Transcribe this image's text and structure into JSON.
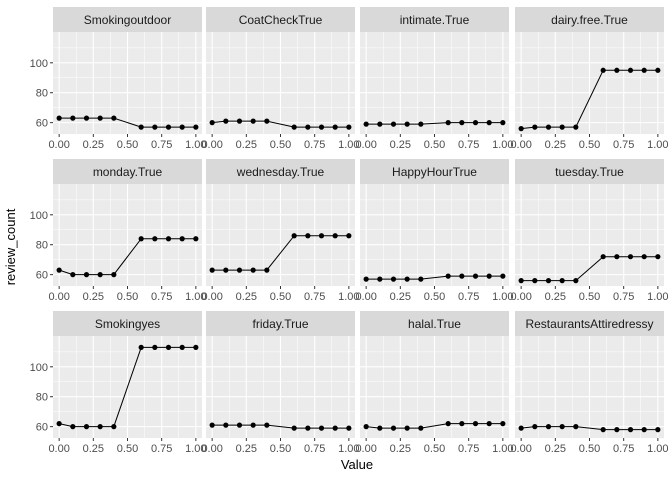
{
  "chart_data": {
    "type": "line",
    "xlabel": "Value",
    "ylabel": "review_count",
    "xlim": [
      0,
      1
    ],
    "ylim": [
      52.4,
      120.6
    ],
    "x_ticks": [
      0,
      0.25,
      0.5,
      0.75,
      1
    ],
    "x_tick_labels": [
      "0.00",
      "0.25",
      "0.50",
      "0.75",
      "1.00"
    ],
    "y_ticks": [
      60,
      80,
      100
    ],
    "y_tick_labels": [
      "60",
      "80",
      "100"
    ],
    "grid": true,
    "x": [
      0,
      0.1,
      0.2,
      0.3,
      0.4,
      0.5,
      0.6,
      0.7,
      0.8,
      0.9,
      1.0
    ],
    "panels": [
      {
        "title": "Smokingoutdoor",
        "y": [
          63,
          63,
          63,
          63,
          63,
          null,
          57,
          57,
          57,
          57,
          57
        ]
      },
      {
        "title": "CoatCheckTrue",
        "y": [
          60,
          61,
          61,
          61,
          61,
          null,
          57,
          57,
          57,
          57,
          57
        ]
      },
      {
        "title": "intimate.True",
        "y": [
          59,
          59,
          59,
          59,
          59,
          null,
          60,
          60,
          60,
          60,
          60
        ]
      },
      {
        "title": "dairy.free.True",
        "y": [
          56,
          57,
          57,
          57,
          57,
          null,
          95,
          95,
          95,
          95,
          95
        ]
      },
      {
        "title": "monday.True",
        "y": [
          63,
          60,
          60,
          60,
          60,
          null,
          84,
          84,
          84,
          84,
          84
        ]
      },
      {
        "title": "wednesday.True",
        "y": [
          63,
          63,
          63,
          63,
          63,
          null,
          86,
          86,
          86,
          86,
          86
        ]
      },
      {
        "title": "HappyHourTrue",
        "y": [
          57,
          57,
          57,
          57,
          57,
          null,
          59,
          59,
          59,
          59,
          59
        ]
      },
      {
        "title": "tuesday.True",
        "y": [
          56,
          56,
          56,
          56,
          56,
          null,
          72,
          72,
          72,
          72,
          72
        ]
      },
      {
        "title": "Smokingyes",
        "y": [
          62,
          60,
          60,
          60,
          60,
          null,
          113,
          113,
          113,
          113,
          113
        ]
      },
      {
        "title": "friday.True",
        "y": [
          61,
          61,
          61,
          61,
          61,
          null,
          59,
          59,
          59,
          59,
          59
        ]
      },
      {
        "title": "halal.True",
        "y": [
          60,
          59,
          59,
          59,
          59,
          null,
          62,
          62,
          62,
          62,
          62
        ]
      },
      {
        "title": "RestaurantsAttiredressy",
        "y": [
          59,
          60,
          60,
          60,
          60,
          null,
          58,
          58,
          58,
          58,
          58
        ]
      }
    ]
  },
  "colors": {
    "panel_background": "#ebebeb",
    "strip_background": "#d9d9d9",
    "grid_major": "#ffffff",
    "line": "#000000",
    "point": "#000000"
  }
}
